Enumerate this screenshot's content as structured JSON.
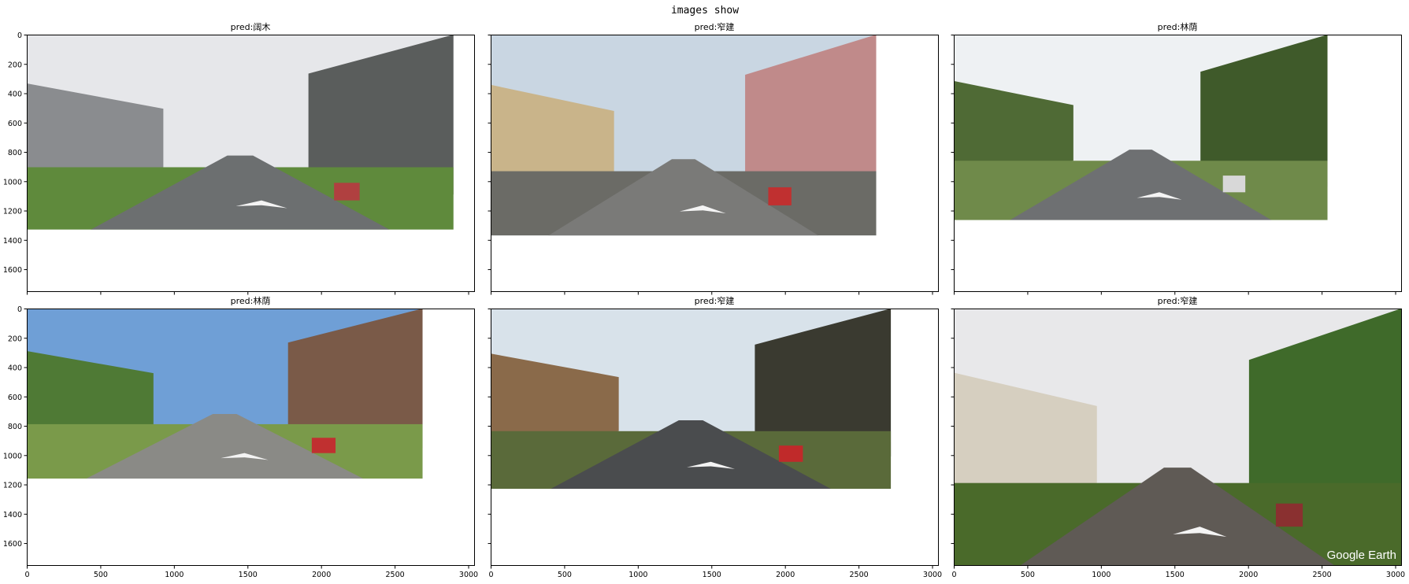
{
  "chart_data": {
    "type": "image_grid",
    "title": "images show",
    "rows": 2,
    "cols": 3,
    "xlim": [
      0,
      3040
    ],
    "ylim": [
      1750,
      0
    ],
    "xticks": [
      0,
      500,
      1000,
      1500,
      2000,
      2500,
      3000
    ],
    "yticks": [
      0,
      200,
      400,
      600,
      800,
      1000,
      1200,
      1400,
      1600
    ],
    "panels": [
      {
        "title": "pred:阔木",
        "image_extent": [
          2900,
          1330
        ],
        "scene": {
          "sky": "#e6e7ea",
          "far": "#8a8c8f",
          "near": "#5a5d5c",
          "road": "#6c6f70",
          "ground": "#5f8a3c",
          "accent": "#b04040"
        }
      },
      {
        "title": "pred:窄建",
        "image_extent": [
          2620,
          1370
        ],
        "scene": {
          "sky": "#c9d6e2",
          "far": "#c9b48a",
          "near": "#c08a8a",
          "road": "#7a7a78",
          "ground": "#6b6b66",
          "accent": "#c03030"
        }
      },
      {
        "title": "pred:林荫",
        "image_extent": [
          2540,
          1265
        ],
        "scene": {
          "sky": "#eef1f3",
          "far": "#4f6a35",
          "near": "#3f5a2a",
          "road": "#6e7072",
          "ground": "#6f8a4a",
          "accent": "#d8d8d8"
        }
      },
      {
        "title": "pred:林荫",
        "image_extent": [
          2690,
          1160
        ],
        "scene": {
          "sky": "#6f9fd6",
          "far": "#4f7a35",
          "near": "#7a5a48",
          "road": "#8a8a86",
          "ground": "#7a9a4a",
          "accent": "#c03030"
        }
      },
      {
        "title": "pred:窄建",
        "image_extent": [
          2720,
          1230
        ],
        "scene": {
          "sky": "#d8e2ea",
          "far": "#8a6a4a",
          "near": "#3a3a30",
          "road": "#4a4c4e",
          "ground": "#5a6a3a",
          "accent": "#c02a2a"
        }
      },
      {
        "title": "pred:窄建",
        "image_extent": [
          3040,
          1750
        ],
        "watermark": "Google Earth",
        "scene": {
          "sky": "#e8e8ea",
          "far": "#d6cfc0",
          "near": "#3f6a2a",
          "road": "#5f5a55",
          "ground": "#4a6a2a",
          "accent": "#8a3030"
        }
      }
    ]
  }
}
